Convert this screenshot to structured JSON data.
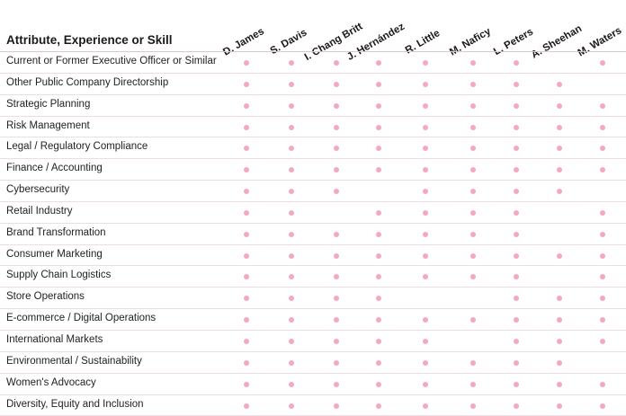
{
  "title": "Attribute, Experience or Skill",
  "dot_color": "#f4a9bd",
  "directors": [
    "D. James",
    "S. Davis",
    "I. Chang Britt",
    "J. Hernández",
    "R. Little",
    "M. Naficy",
    "L. Peters",
    "A. Sheehan",
    "M. Waters"
  ],
  "rows": [
    {
      "label": "Current or Former Executive Officer or Similar",
      "marks": [
        1,
        1,
        1,
        1,
        1,
        1,
        1,
        0,
        1
      ]
    },
    {
      "label": "Other Public Company Directorship",
      "marks": [
        1,
        1,
        1,
        1,
        1,
        1,
        1,
        1,
        0
      ]
    },
    {
      "label": "Strategic Planning",
      "marks": [
        1,
        1,
        1,
        1,
        1,
        1,
        1,
        1,
        1
      ]
    },
    {
      "label": "Risk Management",
      "marks": [
        1,
        1,
        1,
        1,
        1,
        1,
        1,
        1,
        1
      ]
    },
    {
      "label": "Legal / Regulatory Compliance",
      "marks": [
        1,
        1,
        1,
        1,
        1,
        1,
        1,
        1,
        1
      ]
    },
    {
      "label": "Finance / Accounting",
      "marks": [
        1,
        1,
        1,
        1,
        1,
        1,
        1,
        1,
        1
      ]
    },
    {
      "label": "Cybersecurity",
      "marks": [
        1,
        1,
        1,
        0,
        1,
        1,
        1,
        1,
        0
      ]
    },
    {
      "label": "Retail Industry",
      "marks": [
        1,
        1,
        0,
        1,
        1,
        1,
        1,
        0,
        1
      ]
    },
    {
      "label": "Brand Transformation",
      "marks": [
        1,
        1,
        1,
        1,
        1,
        1,
        1,
        0,
        1
      ]
    },
    {
      "label": "Consumer Marketing",
      "marks": [
        1,
        1,
        1,
        1,
        1,
        1,
        1,
        1,
        1
      ]
    },
    {
      "label": "Supply Chain Logistics",
      "marks": [
        1,
        1,
        1,
        1,
        1,
        1,
        1,
        0,
        1
      ]
    },
    {
      "label": "Store Operations",
      "marks": [
        1,
        1,
        1,
        1,
        0,
        0,
        1,
        1,
        1
      ]
    },
    {
      "label": "E-commerce / Digital Operations",
      "marks": [
        1,
        1,
        1,
        1,
        1,
        1,
        1,
        1,
        1
      ]
    },
    {
      "label": "International Markets",
      "marks": [
        1,
        1,
        1,
        1,
        1,
        0,
        1,
        1,
        1
      ]
    },
    {
      "label": "Environmental / Sustainability",
      "marks": [
        1,
        1,
        1,
        1,
        1,
        1,
        1,
        1,
        0
      ]
    },
    {
      "label": "Women's Advocacy",
      "marks": [
        1,
        1,
        1,
        1,
        1,
        1,
        1,
        1,
        1
      ]
    },
    {
      "label": "Diversity, Equity and Inclusion",
      "marks": [
        1,
        1,
        1,
        1,
        1,
        1,
        1,
        1,
        1
      ]
    }
  ]
}
